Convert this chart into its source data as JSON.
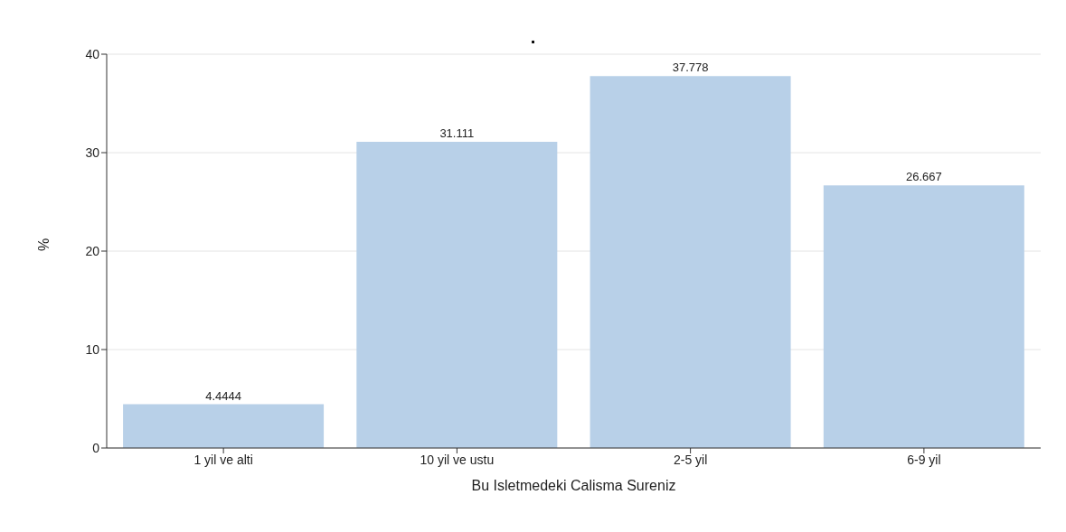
{
  "chart_data": {
    "type": "bar",
    "title": ".",
    "xlabel": "Bu Isletmedeki Calisma Sureniz",
    "ylabel": "%",
    "categories": [
      "1 yil ve alti",
      "10 yil ve ustu",
      "2-5 yil",
      "6-9 yil"
    ],
    "values": [
      4.4444,
      31.111,
      37.778,
      26.667
    ],
    "color": "#b8d0e8",
    "ylim": [
      0,
      40
    ],
    "yticks": [
      0,
      10,
      20,
      30,
      40
    ],
    "grid": "y",
    "data_labels": true
  }
}
